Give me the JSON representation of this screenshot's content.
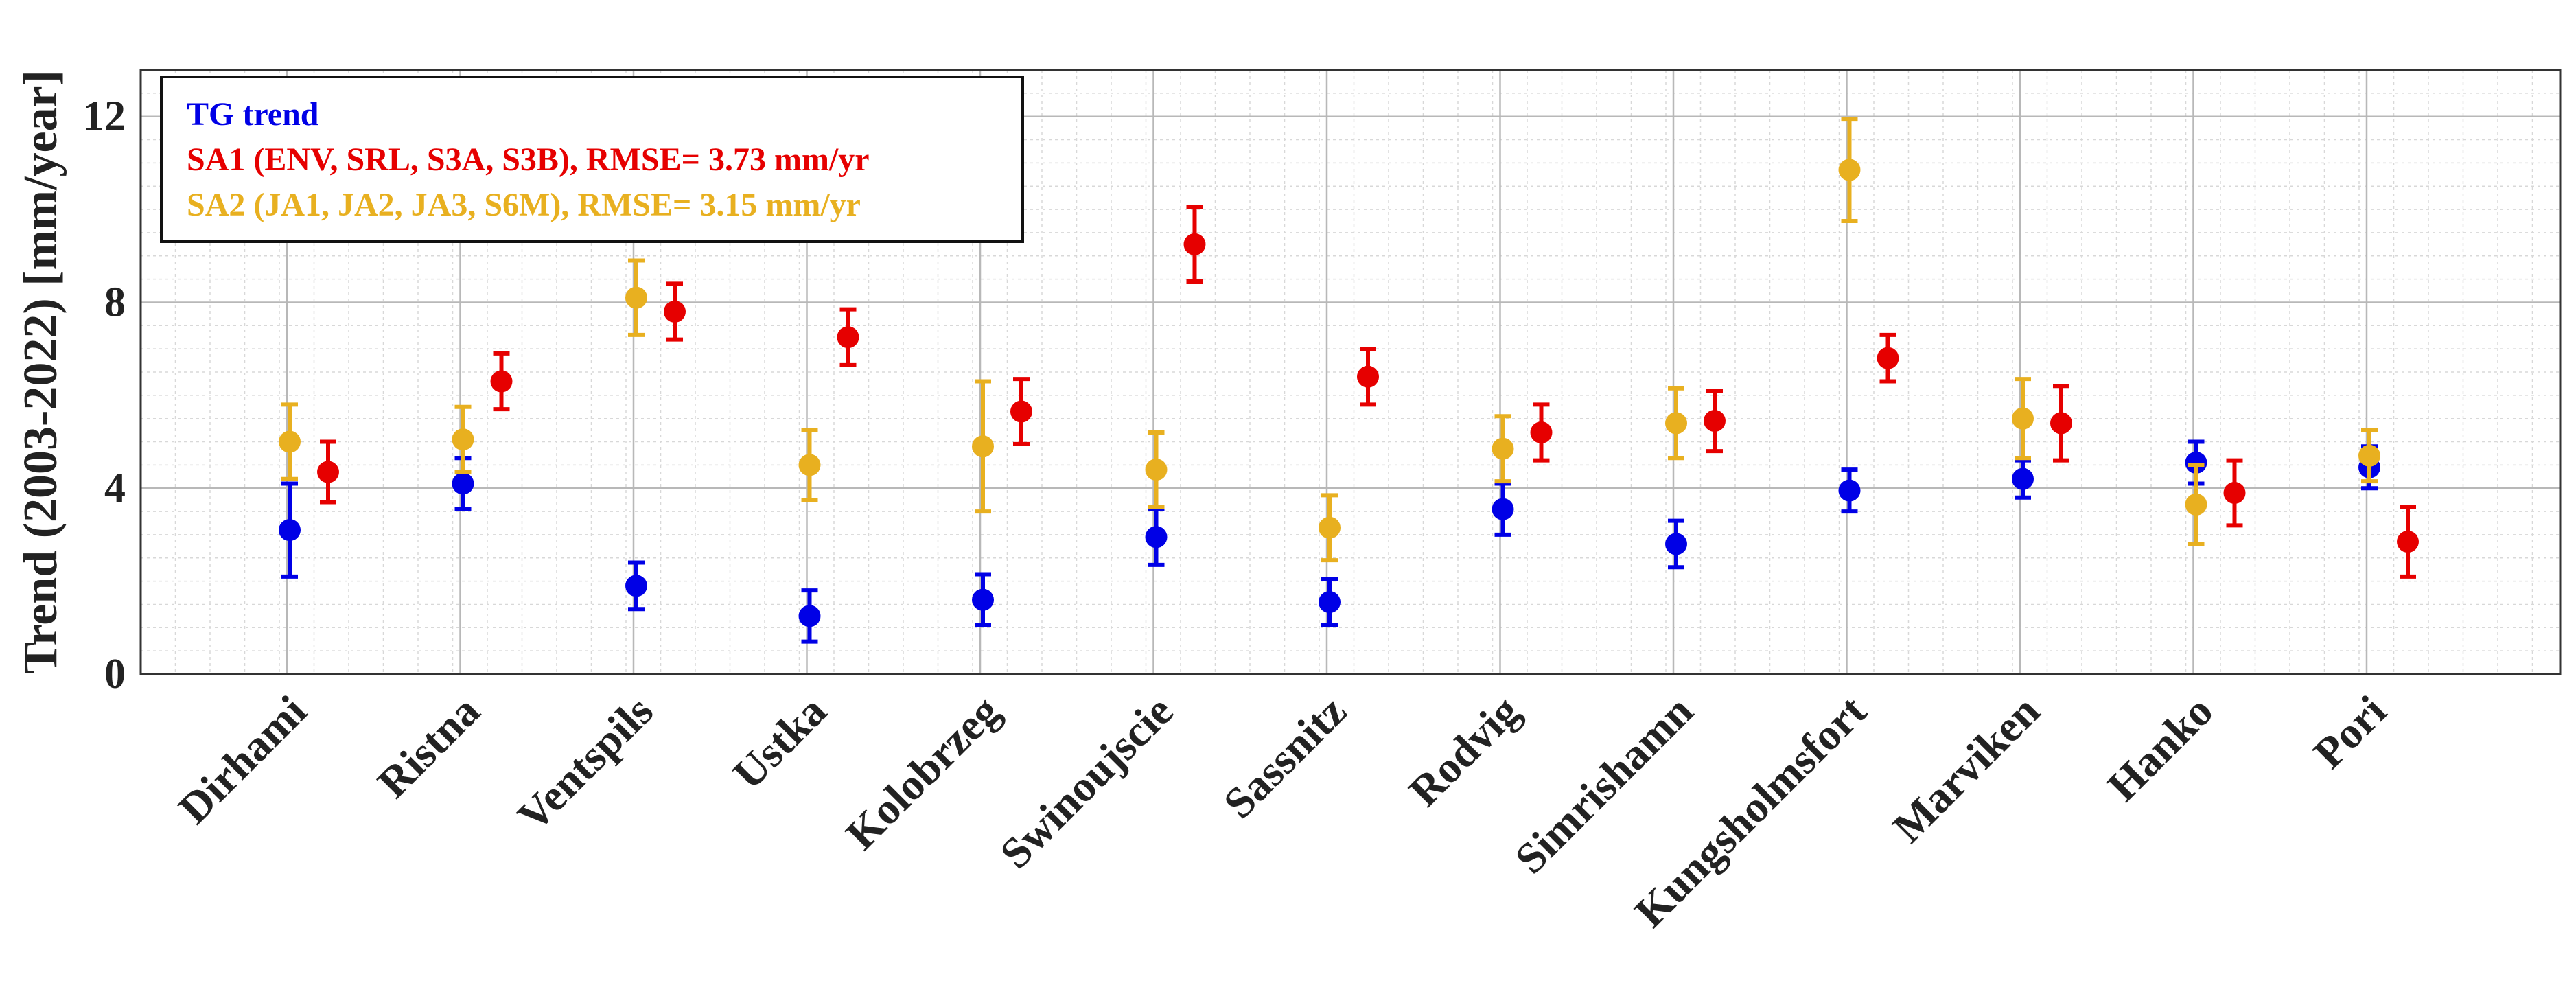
{
  "chart_data": {
    "type": "errorbar",
    "title": "",
    "xlabel": "",
    "ylabel": "Trend (2003-2022) [mm/year]",
    "ylim": [
      0,
      13
    ],
    "yticks": [
      0,
      4,
      8,
      12
    ],
    "grid": "major and minor",
    "legend_position": "top-left",
    "categories": [
      "Dirhami",
      "Ristna",
      "Ventspils",
      "Ustka",
      "Kolobrzeg",
      "Swinoujscie",
      "Sassnitz",
      "Rodvig",
      "Simrishamn",
      "Kungsholmsfort",
      "Marviken",
      "Hanko",
      "Pori"
    ],
    "series": [
      {
        "name": "TG trend",
        "legend_label": "TG trend",
        "color": "#0000e6",
        "offset": "left",
        "values": [
          3.1,
          4.1,
          1.9,
          1.25,
          1.6,
          2.95,
          1.55,
          3.55,
          2.8,
          3.95,
          4.2,
          4.55,
          4.45
        ],
        "errors": [
          1.0,
          0.55,
          0.5,
          0.55,
          0.55,
          0.6,
          0.5,
          0.55,
          0.5,
          0.45,
          0.4,
          0.45,
          0.45
        ]
      },
      {
        "name": "SA2",
        "legend_label": "SA2 (JA1, JA2, JA3, S6M), RMSE= 3.15 mm/yr",
        "color": "#e8b020",
        "offset": "left",
        "values": [
          5.0,
          5.05,
          8.1,
          4.5,
          4.9,
          4.4,
          3.15,
          4.85,
          5.4,
          10.85,
          5.5,
          3.65,
          4.7
        ],
        "errors": [
          0.8,
          0.7,
          0.8,
          0.75,
          1.4,
          0.8,
          0.7,
          0.7,
          0.75,
          1.1,
          0.85,
          0.85,
          0.55
        ]
      },
      {
        "name": "SA1",
        "legend_label": "SA1 (ENV, SRL, S3A, S3B), RMSE= 3.73 mm/yr",
        "color": "#e60000",
        "offset": "right",
        "values": [
          4.35,
          6.3,
          7.8,
          7.25,
          5.65,
          9.25,
          6.4,
          5.2,
          5.45,
          6.8,
          5.4,
          3.9,
          2.85
        ],
        "errors": [
          0.65,
          0.6,
          0.6,
          0.6,
          0.7,
          0.8,
          0.6,
          0.6,
          0.65,
          0.5,
          0.8,
          0.7,
          0.75
        ]
      }
    ]
  }
}
